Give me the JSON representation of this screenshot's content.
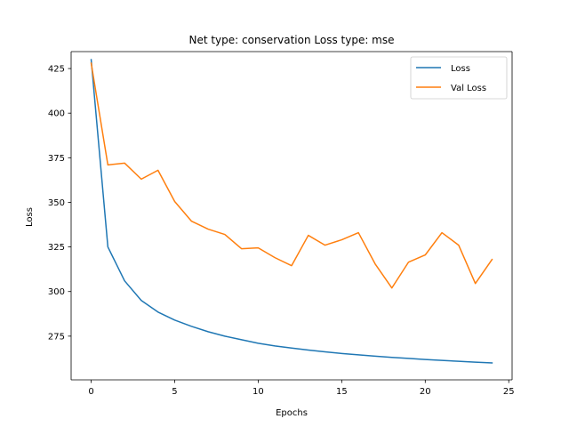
{
  "chart_data": {
    "type": "line",
    "title": "Net type: conservation Loss type: mse",
    "xlabel": "Epochs",
    "ylabel": "Loss",
    "xlim": [
      -1.2,
      25.2
    ],
    "ylim": [
      250.5,
      434.5
    ],
    "xticks": [
      0,
      5,
      10,
      15,
      20,
      25
    ],
    "yticks": [
      275,
      300,
      325,
      350,
      375,
      400,
      425
    ],
    "grid": false,
    "legend_position": "top-right",
    "x": [
      0,
      1,
      2,
      3,
      4,
      5,
      6,
      7,
      8,
      9,
      10,
      11,
      12,
      13,
      14,
      15,
      16,
      17,
      18,
      19,
      20,
      21,
      22,
      23,
      24
    ],
    "series": [
      {
        "name": "Loss",
        "color": "#1f77b4",
        "values": [
          430,
          325,
          306,
          295,
          288.5,
          284,
          280.5,
          277.5,
          275,
          273,
          271,
          269.5,
          268.3,
          267.2,
          266.2,
          265.3,
          264.5,
          263.8,
          263.1,
          262.5,
          261.9,
          261.4,
          260.9,
          260.4,
          260
        ]
      },
      {
        "name": "Val Loss",
        "color": "#ff7f0e",
        "values": [
          428,
          371,
          372,
          363,
          368,
          350.5,
          339.5,
          335,
          332,
          324,
          324.5,
          319,
          314.5,
          331.5,
          326,
          329,
          333,
          315.5,
          302,
          316.5,
          320.5,
          333,
          326,
          304.5,
          318
        ]
      }
    ]
  }
}
